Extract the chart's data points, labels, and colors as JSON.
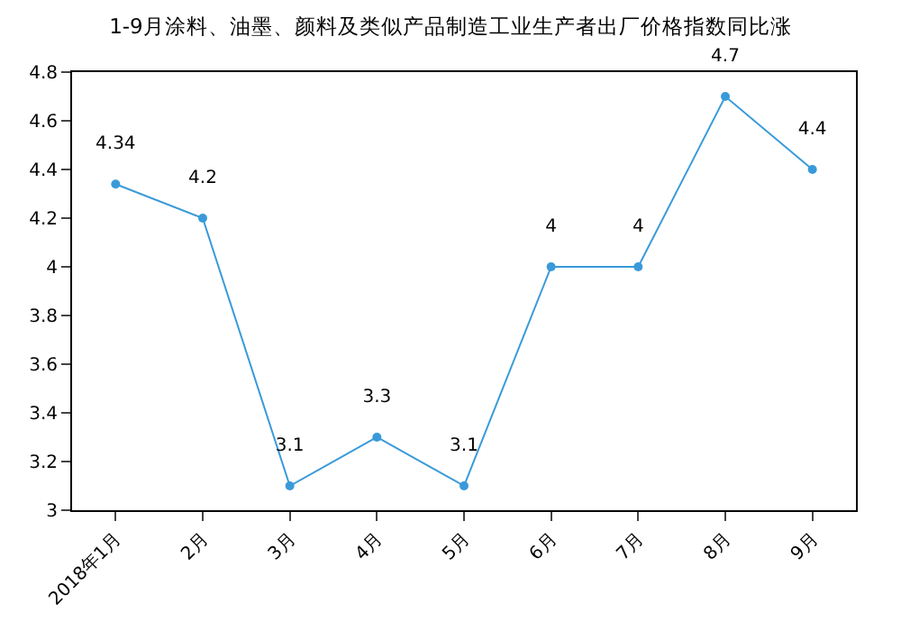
{
  "chart_data": {
    "type": "line",
    "title": "1-9月涂料、油墨、颜料及类似产品制造工业生产者出厂价格指数同比涨",
    "categories": [
      "2018年1月",
      "2月",
      "3月",
      "4月",
      "5月",
      "6月",
      "7月",
      "8月",
      "9月"
    ],
    "series": [
      {
        "color": "#3a9ad9",
        "values": [
          4.34,
          4.2,
          3.1,
          3.3,
          3.1,
          4,
          4,
          4.7,
          4.4
        ]
      }
    ],
    "ylim": [
      3,
      4.8
    ],
    "yticks": [
      3,
      3.2,
      3.4,
      3.6,
      3.8,
      4,
      4.2,
      4.4,
      4.6,
      4.8
    ],
    "data_labels": true,
    "marker": "circle",
    "line_style": "solid",
    "legend": false
  }
}
